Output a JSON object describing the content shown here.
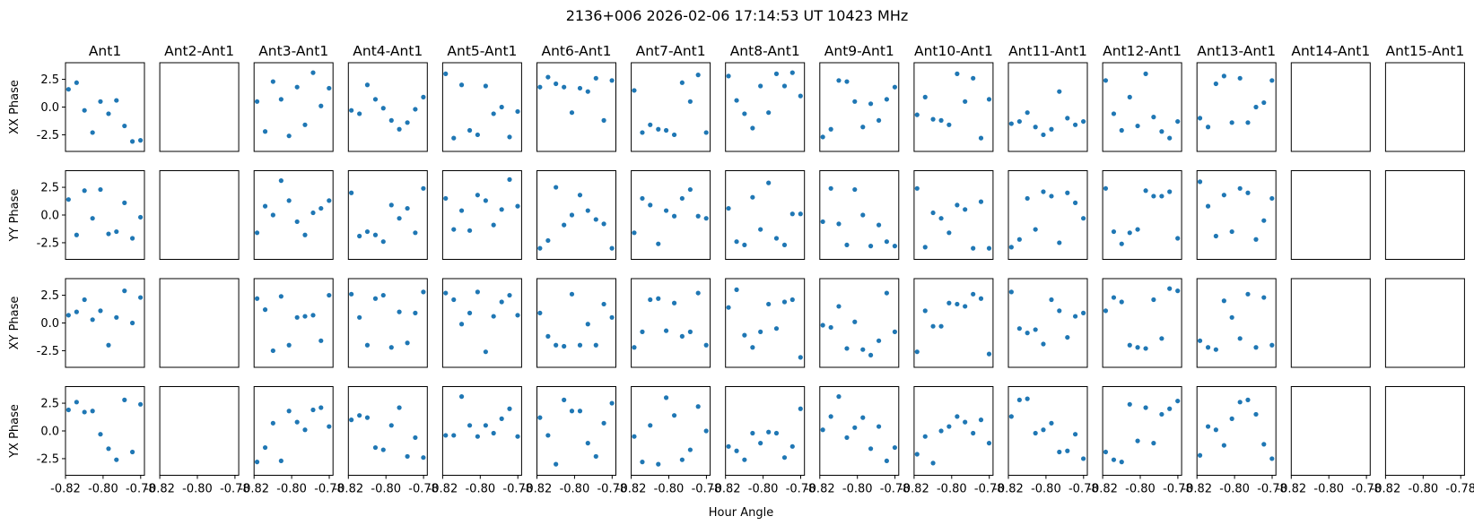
{
  "chart_data": {
    "type": "scatter",
    "title": "2136+006  2026-02-06 17:14:53 UT  10423 MHz",
    "xlabel": "Hour Angle",
    "xlim": [
      -0.82,
      -0.778
    ],
    "ylim": [
      -4.0,
      4.0
    ],
    "x_ticks": [
      -0.82,
      -0.8,
      -0.78
    ],
    "x_tick_labels": [
      "-0.82",
      "-0.80",
      "-0.78"
    ],
    "y_ticks": [
      2.5,
      0.0,
      -2.5
    ],
    "y_tick_labels": [
      "2.5",
      "0.0",
      "-2.5"
    ],
    "marker_color": "#1f77b4",
    "grid": false,
    "columns": [
      "Ant1",
      "Ant2-Ant1",
      "Ant3-Ant1",
      "Ant4-Ant1",
      "Ant5-Ant1",
      "Ant6-Ant1",
      "Ant7-Ant1",
      "Ant8-Ant1",
      "Ant9-Ant1",
      "Ant10-Ant1",
      "Ant11-Ant1",
      "Ant12-Ant1",
      "Ant13-Ant1",
      "Ant14-Ant1",
      "Ant15-Ant1"
    ],
    "rows": [
      "XX Phase",
      "YY Phase",
      "XY Phase",
      "YX Phase"
    ],
    "x": [
      -0.8184,
      -0.8141,
      -0.8099,
      -0.8056,
      -0.8014,
      -0.7971,
      -0.7929,
      -0.7886,
      -0.7844,
      -0.7801
    ],
    "panels": [
      [
        [
          1.6,
          2.2,
          -0.3,
          -2.3,
          0.5,
          -0.6,
          0.6,
          -1.7,
          -3.1,
          -3.0
        ],
        [],
        [
          0.5,
          -2.2,
          2.3,
          0.7,
          -2.6,
          1.8,
          -1.6,
          3.1,
          0.1,
          1.7
        ],
        [
          -0.3,
          -0.6,
          2.0,
          0.7,
          -0.1,
          -1.2,
          -2.0,
          -1.4,
          -0.2,
          0.9
        ],
        [
          3.0,
          -2.8,
          2.0,
          -2.1,
          -2.5,
          1.9,
          -0.6,
          0.0,
          -2.7,
          -0.4
        ],
        [
          1.8,
          2.7,
          2.1,
          1.8,
          -0.5,
          1.7,
          1.4,
          2.6,
          -1.2,
          2.4
        ],
        [
          1.5,
          -2.3,
          -1.6,
          -2.0,
          -2.1,
          -2.5,
          2.2,
          0.5,
          2.9,
          -2.3
        ],
        [
          2.8,
          0.6,
          -0.6,
          -1.9,
          1.9,
          -0.5,
          3.0,
          1.9,
          3.1,
          1.0
        ],
        [
          -2.7,
          -2.0,
          2.4,
          2.3,
          0.5,
          -1.8,
          0.3,
          -1.2,
          0.7,
          1.8
        ],
        [
          -0.7,
          0.9,
          -1.1,
          -1.2,
          -1.6,
          3.0,
          0.5,
          2.6,
          -2.8,
          0.7
        ],
        [
          -1.5,
          -1.3,
          -0.5,
          -1.8,
          -2.5,
          -2.0,
          1.4,
          -1.0,
          -1.6,
          -1.3
        ],
        [
          2.4,
          -0.6,
          -2.1,
          0.9,
          -1.7,
          3.0,
          -0.9,
          -2.2,
          -2.8,
          -1.3
        ],
        [
          -1.0,
          -1.8,
          2.1,
          2.8,
          -1.4,
          2.6,
          -1.4,
          0.0,
          0.4,
          2.4
        ],
        [],
        []
      ],
      [
        [
          1.4,
          -1.8,
          2.2,
          -0.3,
          2.3,
          -1.7,
          -1.5,
          1.1,
          -2.1,
          -0.2
        ],
        [],
        [
          -1.6,
          0.8,
          0.0,
          3.1,
          1.3,
          -0.6,
          -1.8,
          0.2,
          0.6,
          1.3
        ],
        [
          2.0,
          -1.9,
          -1.5,
          -1.8,
          -2.4,
          0.9,
          -0.3,
          0.6,
          -1.6,
          2.4
        ],
        [
          1.5,
          -1.3,
          0.4,
          -1.4,
          1.8,
          1.3,
          -0.9,
          0.5,
          3.2,
          0.8
        ],
        [
          -3.0,
          -2.3,
          2.5,
          -0.9,
          0.0,
          1.8,
          0.4,
          -0.4,
          -0.8,
          -3.0
        ],
        [
          -1.6,
          1.5,
          0.9,
          -2.6,
          0.4,
          -0.1,
          1.5,
          2.3,
          -0.1,
          -0.3
        ],
        [
          0.6,
          -2.4,
          -2.7,
          1.6,
          -1.3,
          2.9,
          -2.1,
          -2.7,
          0.1,
          0.1
        ],
        [
          -0.6,
          2.4,
          -0.8,
          -2.7,
          2.3,
          0.0,
          -2.8,
          -0.9,
          -2.4,
          -2.8
        ],
        [
          2.4,
          -2.9,
          0.2,
          -0.3,
          -1.6,
          0.9,
          0.5,
          -3.0,
          1.2,
          -3.0
        ],
        [
          -2.9,
          -2.2,
          1.5,
          -1.3,
          2.1,
          1.7,
          -2.5,
          2.0,
          1.1,
          -0.3
        ],
        [
          2.4,
          -1.5,
          -2.6,
          -1.6,
          -1.3,
          2.2,
          1.7,
          1.7,
          2.1,
          -2.1
        ],
        [
          3.0,
          0.8,
          -1.9,
          1.8,
          -1.5,
          2.4,
          2.0,
          -2.2,
          -0.5,
          1.5
        ],
        [],
        []
      ],
      [
        [
          0.7,
          1.0,
          2.1,
          0.3,
          1.1,
          -2.0,
          0.5,
          2.9,
          0.0,
          2.3
        ],
        [],
        [
          2.2,
          1.2,
          -2.5,
          2.4,
          -2.0,
          0.5,
          0.6,
          0.7,
          -1.6,
          2.5
        ],
        [
          2.6,
          0.5,
          -2.0,
          2.2,
          2.5,
          -2.2,
          1.0,
          -1.8,
          0.9,
          2.8
        ],
        [
          2.7,
          2.1,
          -0.1,
          0.9,
          2.8,
          -2.6,
          0.6,
          1.9,
          2.5,
          0.7
        ],
        [
          0.9,
          -1.2,
          -2.0,
          -2.1,
          2.6,
          -2.0,
          -0.1,
          -2.0,
          1.7,
          0.5
        ],
        [
          -2.2,
          -0.8,
          2.1,
          2.2,
          -0.7,
          1.8,
          -1.2,
          -0.8,
          2.7,
          -2.0
        ],
        [
          1.4,
          3.0,
          -1.1,
          -2.2,
          -0.8,
          1.7,
          -0.5,
          1.9,
          2.1,
          -3.1
        ],
        [
          -0.2,
          -0.4,
          1.5,
          -2.3,
          0.1,
          -2.4,
          -2.9,
          -1.6,
          2.7,
          -0.8
        ],
        [
          -2.6,
          1.1,
          -0.3,
          -0.3,
          1.8,
          1.7,
          1.5,
          2.6,
          2.2,
          -2.8
        ],
        [
          2.8,
          -0.5,
          -0.9,
          -0.6,
          -1.9,
          2.1,
          1.1,
          -1.3,
          0.6,
          0.9
        ],
        [
          1.1,
          2.3,
          1.9,
          -2.0,
          -2.2,
          -2.3,
          2.1,
          -1.4,
          3.1,
          2.9
        ],
        [
          -1.6,
          -2.2,
          -2.4,
          2.0,
          0.5,
          -1.4,
          2.6,
          -2.2,
          2.3,
          -2.0
        ],
        [],
        []
      ],
      [
        [
          1.9,
          2.6,
          1.7,
          1.8,
          -0.3,
          -1.6,
          -2.6,
          2.8,
          -1.9,
          2.4
        ],
        [],
        [
          -2.8,
          -1.5,
          0.7,
          -2.7,
          1.8,
          0.8,
          0.1,
          1.9,
          2.1,
          0.4
        ],
        [
          1.0,
          1.4,
          1.2,
          -1.5,
          -1.7,
          0.5,
          2.1,
          -2.3,
          -0.6,
          -2.4
        ],
        [
          -0.4,
          -0.4,
          3.1,
          0.5,
          -0.5,
          0.5,
          -0.2,
          1.1,
          2.0,
          -0.5
        ],
        [
          1.2,
          -0.4,
          -3.0,
          2.8,
          1.8,
          1.8,
          -1.1,
          -2.3,
          0.7,
          2.5
        ],
        [
          -0.5,
          -2.8,
          0.5,
          -3.0,
          3.0,
          1.4,
          -2.6,
          -1.7,
          2.2,
          0.0
        ],
        [
          -1.4,
          -1.8,
          -2.6,
          -0.2,
          -1.1,
          -0.1,
          -0.2,
          -2.4,
          -1.4,
          2.0
        ],
        [
          0.1,
          1.3,
          3.1,
          -0.6,
          0.3,
          1.2,
          -1.6,
          0.4,
          -2.7,
          -1.5
        ],
        [
          -2.1,
          -0.5,
          -2.9,
          0.0,
          0.4,
          1.3,
          0.8,
          -0.2,
          1.0,
          -1.1
        ],
        [
          1.3,
          2.8,
          2.9,
          -0.2,
          0.1,
          0.7,
          -1.9,
          -1.8,
          -0.3,
          -2.5
        ],
        [
          -1.9,
          -2.6,
          -2.8,
          2.4,
          -0.9,
          2.1,
          -1.1,
          1.5,
          2.0,
          2.7
        ],
        [
          -2.2,
          0.4,
          0.1,
          -1.3,
          1.1,
          2.6,
          2.8,
          1.5,
          -1.2,
          -2.5
        ],
        [],
        []
      ]
    ]
  }
}
